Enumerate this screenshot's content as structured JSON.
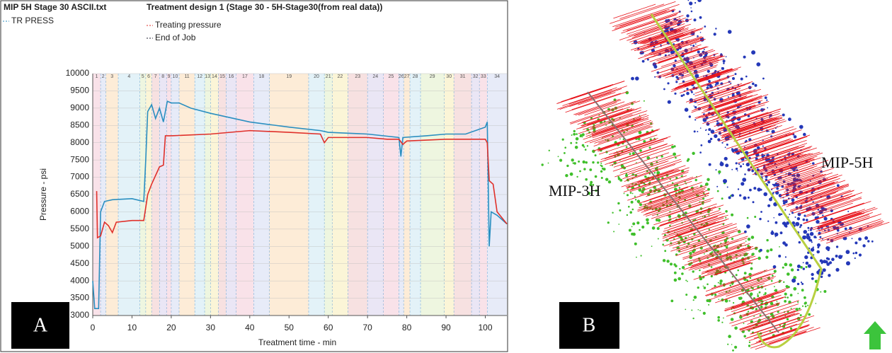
{
  "chart_data": {
    "type": "line",
    "title": "MIP 5H Stage 30 ASCII.txt",
    "subtitle": "Treatment design 1 (Stage 30 - 5H-Stage30(from real data))",
    "end_of_job_label": "End of Job",
    "x_label": "Treatment time - min",
    "y_label": "Pressure - psi",
    "xlim": [
      0,
      105.5
    ],
    "ylim": [
      3000,
      10000
    ],
    "xticks": [
      0,
      10,
      20,
      30,
      40,
      50,
      60,
      70,
      80,
      90,
      100
    ],
    "yticks": [
      3000,
      3500,
      4000,
      4500,
      5000,
      5500,
      6000,
      6500,
      7000,
      7500,
      8000,
      8500,
      9000,
      9500,
      10000
    ],
    "stage_labels": [
      "1",
      "2",
      "3",
      "4",
      "5",
      "6",
      "7",
      "8",
      "9",
      "10",
      "11",
      "12",
      "13",
      "14",
      "15",
      "16",
      "17",
      "18",
      "19",
      "20",
      "21",
      "22",
      "23",
      "24",
      "25",
      "26",
      "27",
      "28",
      "29",
      "30",
      "31",
      "32",
      "33",
      "34"
    ],
    "stage_starts": [
      0,
      2,
      3.3,
      6.5,
      12,
      13.5,
      15,
      17,
      18.8,
      20,
      22,
      26,
      28.5,
      30,
      32,
      34,
      36.5,
      41,
      45,
      55,
      59,
      61,
      65,
      70,
      74,
      78,
      79.2,
      80.8,
      83.5,
      89.5,
      92,
      96.5,
      98.5,
      100.5
    ],
    "series": [
      {
        "name": "TR PRESS",
        "color": "#2a8fc0",
        "x": [
          0,
          0.5,
          1.5,
          2,
          3,
          5,
          10,
          13,
          13.5,
          14,
          15,
          16,
          17,
          18,
          19,
          20,
          22,
          25,
          30,
          40,
          50,
          58,
          60,
          70,
          78,
          78.5,
          79,
          85,
          90,
          95,
          100,
          100.5,
          101,
          101.5,
          103,
          105.5
        ],
        "values": [
          4000,
          3200,
          3200,
          6000,
          6300,
          6350,
          6380,
          6300,
          7500,
          8900,
          9100,
          8700,
          9000,
          8600,
          9200,
          9150,
          9150,
          9000,
          8850,
          8600,
          8450,
          8350,
          8300,
          8250,
          8150,
          7600,
          8150,
          8200,
          8250,
          8250,
          8450,
          8600,
          5000,
          6000,
          5900,
          5650
        ]
      },
      {
        "name": "Treating pressure",
        "color": "#e0302a",
        "x": [
          1,
          1.2,
          2,
          3,
          4,
          5,
          6,
          10,
          13,
          14,
          15,
          17,
          18,
          18.5,
          20,
          30,
          40,
          50,
          58,
          59,
          60,
          70,
          75,
          78,
          79,
          80,
          90,
          100,
          100.5,
          101,
          102,
          103,
          105.5
        ],
        "values": [
          6600,
          5250,
          5300,
          5700,
          5600,
          5400,
          5700,
          5750,
          5750,
          6500,
          6800,
          7300,
          7350,
          8200,
          8200,
          8250,
          8350,
          8300,
          8250,
          8000,
          8150,
          8150,
          8100,
          8100,
          7950,
          8050,
          8100,
          8100,
          8000,
          6900,
          6800,
          6000,
          5650
        ]
      }
    ]
  },
  "panel_labels": [
    "A",
    "B"
  ],
  "well_labels": [
    "MIP-3H",
    "MIP-5H"
  ]
}
